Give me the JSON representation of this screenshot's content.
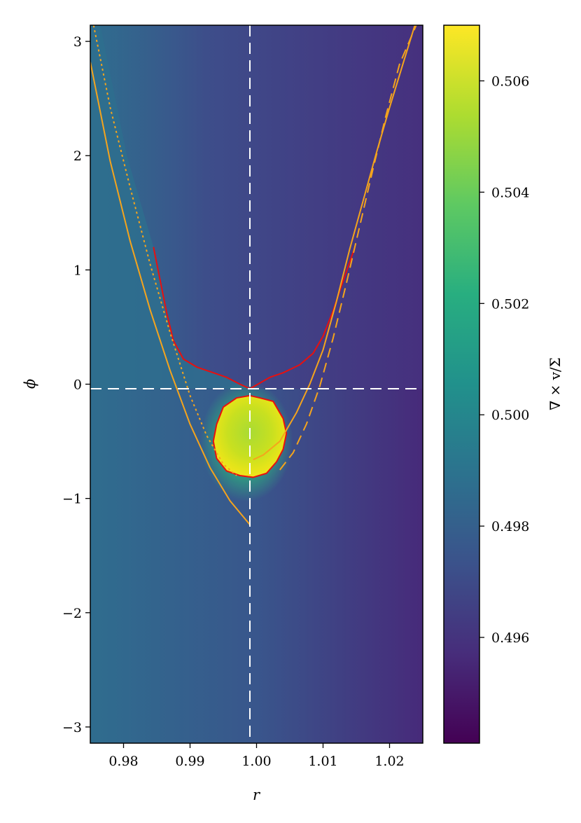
{
  "chart_data": {
    "type": "heatmap",
    "title": "",
    "xlabel": "r",
    "ylabel": "ϕ",
    "xlim": [
      0.975,
      1.025
    ],
    "ylim": [
      -3.14159,
      3.14159
    ],
    "x_ticks": [
      {
        "value": 0.98,
        "label": "0.98"
      },
      {
        "value": 0.99,
        "label": "0.99"
      },
      {
        "value": 1.0,
        "label": "1.00"
      },
      {
        "value": 1.01,
        "label": "1.01"
      },
      {
        "value": 1.02,
        "label": "1.02"
      }
    ],
    "y_ticks": [
      {
        "value": 3,
        "label": "3"
      },
      {
        "value": 2,
        "label": "2"
      },
      {
        "value": 1,
        "label": "1"
      },
      {
        "value": 0,
        "label": "0"
      },
      {
        "value": -1,
        "label": "−1"
      },
      {
        "value": -2,
        "label": "−2"
      },
      {
        "value": -3,
        "label": "−3"
      }
    ],
    "colorbar": {
      "label": "∇ × v/Σ",
      "range": [
        0.4941,
        0.507
      ],
      "colormap": "viridis",
      "ticks": [
        {
          "value": 0.506,
          "label": "0.506"
        },
        {
          "value": 0.504,
          "label": "0.504"
        },
        {
          "value": 0.502,
          "label": "0.502"
        },
        {
          "value": 0.5,
          "label": "0.500"
        },
        {
          "value": 0.498,
          "label": "0.498"
        },
        {
          "value": 0.496,
          "label": "0.496"
        }
      ]
    },
    "field": {
      "background_left": 0.4983,
      "background_right": 0.4955,
      "upper_region_value": 0.4965,
      "vortex_center": [
        0.9985,
        -0.45
      ],
      "vortex_value": 0.5055
    },
    "reference_lines": [
      {
        "orientation": "vertical",
        "value": 0.999,
        "color": "#ffffff",
        "style": "dashed"
      },
      {
        "orientation": "horizontal",
        "value": -0.04,
        "color": "#ffffff",
        "style": "dashed"
      }
    ],
    "curves": [
      {
        "color": "#e8100f",
        "style": "solid",
        "points": [
          [
            0.9845,
            1.2
          ],
          [
            0.9865,
            0.62
          ],
          [
            0.9875,
            0.38
          ],
          [
            0.989,
            0.22
          ],
          [
            0.991,
            0.15
          ],
          [
            0.9935,
            0.1
          ],
          [
            0.9955,
            0.06
          ],
          [
            0.9975,
            0.0
          ],
          [
            0.999,
            -0.04
          ],
          [
            1.0005,
            0.01
          ],
          [
            1.002,
            0.06
          ],
          [
            1.004,
            0.1
          ],
          [
            1.0065,
            0.17
          ],
          [
            1.0085,
            0.27
          ],
          [
            1.01,
            0.42
          ],
          [
            1.0115,
            0.64
          ],
          [
            1.013,
            0.9
          ],
          [
            1.0148,
            1.2
          ]
        ]
      },
      {
        "color": "#e8100f",
        "style": "solid",
        "points": [
          [
            0.999,
            -0.1
          ],
          [
            1.0005,
            -0.12
          ],
          [
            1.0025,
            -0.15
          ],
          [
            1.004,
            -0.3
          ],
          [
            1.0045,
            -0.43
          ],
          [
            1.004,
            -0.57
          ],
          [
            1.003,
            -0.68
          ],
          [
            1.0015,
            -0.78
          ],
          [
            0.9995,
            -0.815
          ],
          [
            0.9975,
            -0.8
          ],
          [
            0.9955,
            -0.76
          ],
          [
            0.994,
            -0.65
          ],
          [
            0.9935,
            -0.5
          ],
          [
            0.994,
            -0.35
          ],
          [
            0.995,
            -0.2
          ],
          [
            0.997,
            -0.12
          ],
          [
            0.999,
            -0.1
          ]
        ]
      },
      {
        "color": "#f5a41c",
        "style": "solid",
        "points": [
          [
            0.975,
            2.82
          ],
          [
            0.978,
            1.95
          ],
          [
            0.981,
            1.25
          ],
          [
            0.984,
            0.65
          ],
          [
            0.987,
            0.12
          ],
          [
            0.99,
            -0.35
          ],
          [
            0.993,
            -0.73
          ],
          [
            0.996,
            -1.02
          ],
          [
            0.999,
            -1.23
          ]
        ]
      },
      {
        "color": "#f5a41c",
        "style": "solid",
        "points": [
          [
            0.9995,
            -0.66
          ],
          [
            1.001,
            -0.62
          ],
          [
            1.0035,
            -0.5
          ],
          [
            1.006,
            -0.25
          ],
          [
            1.008,
            0.0
          ],
          [
            1.01,
            0.3
          ],
          [
            1.012,
            0.72
          ],
          [
            1.014,
            1.18
          ],
          [
            1.016,
            1.6
          ],
          [
            1.018,
            2.02
          ],
          [
            1.02,
            2.42
          ],
          [
            1.022,
            2.8
          ],
          [
            1.0238,
            3.14
          ]
        ]
      },
      {
        "color": "#f5a41c",
        "style": "dotted",
        "points": [
          [
            0.9755,
            3.14
          ],
          [
            0.978,
            2.42
          ],
          [
            0.981,
            1.72
          ],
          [
            0.984,
            1.05
          ],
          [
            0.987,
            0.45
          ],
          [
            0.99,
            -0.1
          ],
          [
            0.9925,
            -0.45
          ],
          [
            0.995,
            -0.7
          ],
          [
            0.997,
            -0.8
          ]
        ]
      },
      {
        "color": "#f5a41c",
        "style": "dashed",
        "points": [
          [
            1.0035,
            -0.75
          ],
          [
            1.0055,
            -0.6
          ],
          [
            1.0075,
            -0.35
          ],
          [
            1.0095,
            -0.02
          ],
          [
            1.0115,
            0.4
          ],
          [
            1.0135,
            0.88
          ],
          [
            1.0155,
            1.38
          ],
          [
            1.0175,
            1.88
          ],
          [
            1.0195,
            2.36
          ],
          [
            1.0215,
            2.8
          ],
          [
            1.024,
            3.14
          ]
        ]
      }
    ]
  }
}
